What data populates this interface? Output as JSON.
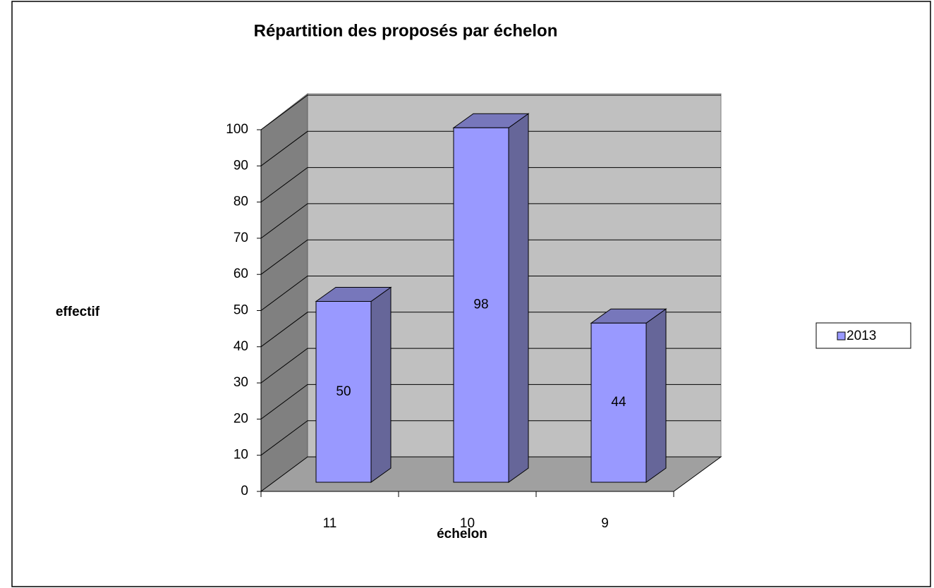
{
  "chart_data": {
    "type": "bar3d",
    "title": "Répartition des proposés par échelon",
    "x_label": "échelon",
    "y_label": "effectif",
    "categories": [
      "11",
      "10",
      "9"
    ],
    "series": [
      {
        "name": "2013",
        "color": "#9999ff",
        "values": [
          50,
          98,
          44
        ]
      }
    ],
    "ylim": [
      0,
      100
    ],
    "yticks": [
      0,
      10,
      20,
      30,
      40,
      50,
      60,
      70,
      80,
      90,
      100
    ],
    "grid": true,
    "legend": "right"
  }
}
